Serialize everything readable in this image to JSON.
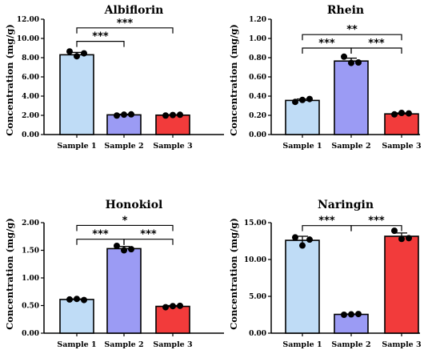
{
  "chart_data": [
    {
      "type": "bar",
      "title": "Albiflorin",
      "ylabel": "Concentration  (mg/g)",
      "categories": [
        "Sample 1",
        "Sample 2",
        "Sample 3"
      ],
      "values": [
        8.3,
        2.05,
        2.02
      ],
      "errors": [
        0.25,
        0.07,
        0.05
      ],
      "points": [
        [
          8.65,
          8.15,
          8.45
        ],
        [
          1.98,
          2.07,
          2.1
        ],
        [
          1.98,
          2.03,
          2.06
        ]
      ],
      "ylim": [
        0,
        12
      ],
      "yticks": [
        "0.00",
        "2.00",
        "4.00",
        "6.00",
        "8.00",
        "10.00",
        "12.00"
      ],
      "significance": [
        {
          "from": 0,
          "to": 1,
          "label": "***",
          "level": 9.7
        },
        {
          "from": 0,
          "to": 2,
          "label": "***",
          "level": 11.1
        }
      ]
    },
    {
      "type": "bar",
      "title": "Rhein",
      "ylabel": "Concentration  (mg/g)",
      "categories": [
        "Sample 1",
        "Sample 2",
        "Sample 3"
      ],
      "values": [
        0.355,
        0.765,
        0.215
      ],
      "errors": [
        0.015,
        0.03,
        0.01
      ],
      "points": [
        [
          0.34,
          0.36,
          0.37
        ],
        [
          0.81,
          0.745,
          0.75
        ],
        [
          0.21,
          0.225,
          0.22
        ]
      ],
      "ylim": [
        0,
        1.2
      ],
      "yticks": [
        "0.00",
        "0.20",
        "0.40",
        "0.60",
        "0.80",
        "1.00",
        "1.20"
      ],
      "significance": [
        {
          "from": 0,
          "to": 1,
          "label": "***",
          "level": 0.9
        },
        {
          "from": 1,
          "to": 2,
          "label": "***",
          "level": 0.9
        },
        {
          "from": 0,
          "to": 2,
          "label": "**",
          "level": 1.04
        }
      ]
    },
    {
      "type": "bar",
      "title": "Honokiol",
      "ylabel": "Concentration  (mg/g)",
      "categories": [
        "Sample 1",
        "Sample 2",
        "Sample 3"
      ],
      "values": [
        0.61,
        1.53,
        0.485
      ],
      "errors": [
        0.01,
        0.04,
        0.015
      ],
      "points": [
        [
          0.61,
          0.62,
          0.6
        ],
        [
          1.58,
          1.5,
          1.52
        ],
        [
          0.47,
          0.49,
          0.495
        ]
      ],
      "ylim": [
        0,
        2
      ],
      "yticks": [
        "0.00",
        "0.50",
        "1.00",
        "1.50",
        "2.00"
      ],
      "significance": [
        {
          "from": 0,
          "to": 1,
          "label": "***",
          "level": 1.7
        },
        {
          "from": 1,
          "to": 2,
          "label": "***",
          "level": 1.7
        },
        {
          "from": 0,
          "to": 2,
          "label": "*",
          "level": 1.95
        }
      ]
    },
    {
      "type": "bar",
      "title": "Naringin",
      "ylabel": "Concentration  (mg/g)",
      "categories": [
        "Sample 1",
        "Sample 2",
        "Sample 3"
      ],
      "values": [
        12.6,
        2.55,
        13.15
      ],
      "errors": [
        0.55,
        0.05,
        0.45
      ],
      "points": [
        [
          13.0,
          11.9,
          12.7
        ],
        [
          2.5,
          2.55,
          2.6
        ],
        [
          13.9,
          12.8,
          12.9
        ]
      ],
      "ylim": [
        0,
        15
      ],
      "yticks": [
        "0.00",
        "5.00",
        "10.00",
        "15.00"
      ],
      "significance": [
        {
          "from": 0,
          "to": 1,
          "label": "***",
          "level": 14.6
        },
        {
          "from": 1,
          "to": 2,
          "label": "***",
          "level": 14.6
        }
      ]
    }
  ],
  "colors": {
    "bars": [
      "#bfdcf6",
      "#9b9bf4",
      "#f23b3b"
    ],
    "outline": "#000000"
  }
}
